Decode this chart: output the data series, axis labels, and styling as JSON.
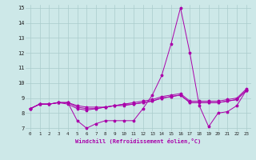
{
  "xlabel": "Windchill (Refroidissement éolien,°C)",
  "xlim": [
    -0.5,
    23.5
  ],
  "ylim": [
    6.8,
    15.2
  ],
  "xticks": [
    0,
    1,
    2,
    3,
    4,
    5,
    6,
    7,
    8,
    9,
    10,
    11,
    12,
    13,
    14,
    15,
    16,
    17,
    18,
    19,
    20,
    21,
    22,
    23
  ],
  "yticks": [
    7,
    8,
    9,
    10,
    11,
    12,
    13,
    14,
    15
  ],
  "background_color": "#cde8e8",
  "grid_color": "#aacccc",
  "line_color": "#aa00aa",
  "series": [
    [
      8.3,
      8.6,
      8.6,
      8.7,
      8.7,
      7.5,
      7.0,
      7.3,
      7.5,
      7.5,
      7.5,
      7.5,
      8.3,
      9.2,
      10.5,
      12.6,
      15.0,
      12.0,
      8.5,
      7.1,
      8.0,
      8.1,
      8.5,
      9.5
    ],
    [
      8.3,
      8.6,
      8.6,
      8.7,
      8.7,
      8.4,
      8.3,
      8.3,
      8.4,
      8.5,
      8.5,
      8.6,
      8.7,
      8.8,
      9.0,
      9.1,
      9.2,
      8.7,
      8.7,
      8.7,
      8.7,
      8.8,
      8.9,
      9.5
    ],
    [
      8.3,
      8.6,
      8.6,
      8.7,
      8.6,
      8.3,
      8.2,
      8.3,
      8.4,
      8.5,
      8.6,
      8.6,
      8.7,
      8.8,
      9.0,
      9.1,
      9.2,
      8.7,
      8.7,
      8.7,
      8.7,
      8.8,
      8.9,
      9.5
    ],
    [
      8.3,
      8.6,
      8.6,
      8.7,
      8.7,
      8.5,
      8.4,
      8.4,
      8.4,
      8.5,
      8.6,
      8.7,
      8.8,
      8.9,
      9.1,
      9.2,
      9.3,
      8.8,
      8.8,
      8.8,
      8.8,
      8.9,
      9.0,
      9.6
    ]
  ]
}
